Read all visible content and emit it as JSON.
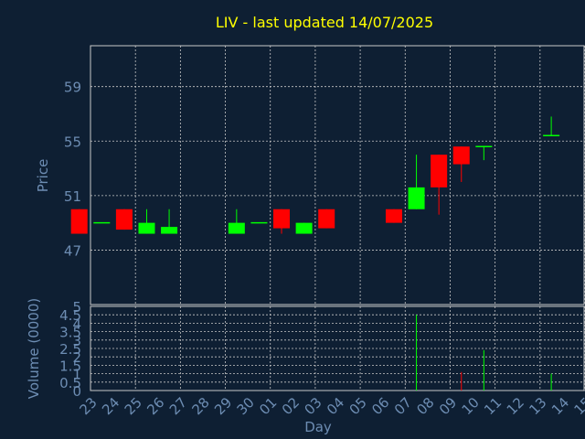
{
  "chart_data": {
    "type": "candlestick",
    "title": "LIV - last updated 14/07/2025",
    "xlabel": "Day",
    "price_panel": {
      "ylabel": "Price",
      "ylim": [
        43,
        62
      ],
      "yticks": [
        "47",
        "51",
        "55",
        "59"
      ],
      "grid": true
    },
    "volume_panel": {
      "ylabel": "Volume (0000)",
      "ylim": [
        0,
        5
      ],
      "yticks": [
        "0",
        "0.5",
        "1",
        "1.5",
        "2",
        "2.5",
        "3",
        "3.5",
        "4",
        "4.5",
        "5"
      ],
      "grid": true
    },
    "x_tick_labels": [
      "23",
      "24",
      "25",
      "26",
      "27",
      "28",
      "29",
      "30",
      "01",
      "02",
      "03",
      "04",
      "05",
      "06",
      "07",
      "08",
      "09",
      "10",
      "11",
      "12",
      "13",
      "14",
      "15"
    ],
    "candles": [
      {
        "day": "23",
        "open": 50.0,
        "high": 50.0,
        "low": 48.2,
        "close": 48.2,
        "volume": 0
      },
      {
        "day": "24",
        "open": 49.0,
        "high": 49.0,
        "low": 49.0,
        "close": 49.0,
        "volume": 0
      },
      {
        "day": "25",
        "open": 50.0,
        "high": 50.0,
        "low": 48.5,
        "close": 48.5,
        "volume": 0
      },
      {
        "day": "26",
        "open": 48.2,
        "high": 50.0,
        "low": 48.2,
        "close": 49.0,
        "volume": 0
      },
      {
        "day": "27",
        "open": 48.2,
        "high": 50.0,
        "low": 48.2,
        "close": 48.7,
        "volume": 0
      },
      {
        "day": "30",
        "open": 48.2,
        "high": 50.0,
        "low": 48.2,
        "close": 49.0,
        "volume": 0
      },
      {
        "day": "01",
        "open": 49.0,
        "high": 49.0,
        "low": 49.0,
        "close": 49.0,
        "volume": 0
      },
      {
        "day": "02",
        "open": 50.0,
        "high": 50.0,
        "low": 48.2,
        "close": 48.6,
        "volume": 0
      },
      {
        "day": "03",
        "open": 48.2,
        "high": 49.0,
        "low": 48.2,
        "close": 49.0,
        "volume": 0
      },
      {
        "day": "04",
        "open": 50.0,
        "high": 50.0,
        "low": 48.6,
        "close": 48.6,
        "volume": 0
      },
      {
        "day": "07",
        "open": 50.0,
        "high": 50.0,
        "low": 49.0,
        "close": 49.0,
        "volume": 0
      },
      {
        "day": "08",
        "open": 50.0,
        "high": 54.0,
        "low": 50.0,
        "close": 51.6,
        "volume": 4.5
      },
      {
        "day": "09",
        "open": 54.0,
        "high": 54.0,
        "low": 49.6,
        "close": 51.6,
        "volume": 0
      },
      {
        "day": "10",
        "open": 54.6,
        "high": 54.6,
        "low": 52.0,
        "close": 53.3,
        "volume": 1.1
      },
      {
        "day": "11",
        "open": 54.6,
        "high": 54.6,
        "low": 53.6,
        "close": 54.6,
        "volume": 2.4
      },
      {
        "day": "14",
        "open": 55.4,
        "high": 56.8,
        "low": 55.4,
        "close": 55.4,
        "volume": 1.0
      }
    ],
    "colors": {
      "background": "#0e1f33",
      "grid": "#c8c8c8",
      "axis_text": "#6d8db3",
      "title": "#ffff00",
      "up": "#00ff00",
      "down": "#ff0000"
    }
  }
}
